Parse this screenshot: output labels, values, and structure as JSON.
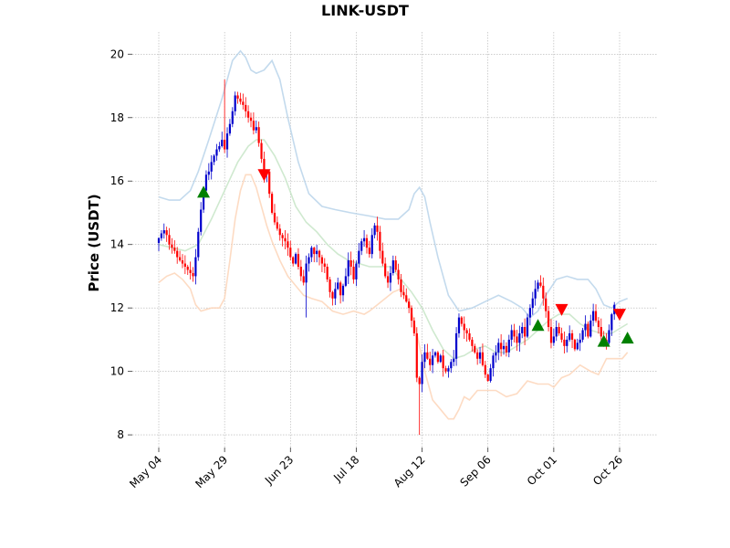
{
  "chart_data": {
    "type": "candlestick",
    "title": "LINK-USDT",
    "xlabel": "",
    "ylabel": "Price (USDT)",
    "ylim": [
      7.6,
      20.7
    ],
    "y_ticks": [
      8,
      10,
      12,
      14,
      16,
      18,
      20
    ],
    "x_start": "2023-05-04",
    "x_end": "2023-10-29",
    "x_ticks": [
      {
        "date": "2023-05-04",
        "label": "May 04"
      },
      {
        "date": "2023-05-29",
        "label": "May 29"
      },
      {
        "date": "2023-06-23",
        "label": "Jun 23"
      },
      {
        "date": "2023-07-18",
        "label": "Jul 18"
      },
      {
        "date": "2023-08-12",
        "label": "Aug 12"
      },
      {
        "date": "2023-09-06",
        "label": "Sep 06"
      },
      {
        "date": "2023-10-01",
        "label": "Oct 01"
      },
      {
        "date": "2023-10-26",
        "label": "Oct 26"
      }
    ],
    "grid": true,
    "colors": {
      "up": "#0000cc",
      "down": "#ff0000",
      "upper_band": "#b8d4ea",
      "middle_band": "#c7e5c7",
      "lower_band": "#fdd5b8",
      "buy_marker": "#008000",
      "sell_marker": "#ff0000"
    },
    "closes": [
      14.2,
      14.35,
      14.45,
      14.3,
      14.0,
      13.9,
      13.8,
      13.6,
      13.5,
      13.4,
      13.3,
      13.2,
      13.1,
      13.0,
      13.6,
      14.4,
      15.1,
      15.7,
      16.2,
      16.3,
      16.6,
      16.8,
      17.0,
      17.1,
      17.3,
      17.0,
      17.5,
      17.8,
      18.2,
      18.7,
      18.6,
      18.5,
      18.4,
      18.2,
      18.0,
      17.9,
      17.6,
      17.7,
      17.2,
      16.7,
      16.2,
      16.3,
      15.6,
      15.0,
      14.7,
      14.5,
      14.3,
      14.2,
      14.1,
      13.9,
      13.6,
      13.4,
      13.7,
      13.3,
      13.0,
      12.8,
      13.4,
      13.6,
      13.9,
      13.7,
      13.8,
      13.6,
      13.4,
      13.3,
      12.9,
      12.5,
      12.3,
      12.6,
      12.8,
      12.4,
      12.7,
      13.0,
      13.5,
      13.3,
      12.9,
      13.4,
      13.8,
      14.1,
      14.2,
      13.9,
      13.7,
      14.3,
      14.6,
      14.4,
      13.8,
      13.4,
      13.0,
      12.8,
      13.1,
      13.5,
      13.2,
      12.9,
      12.5,
      12.4,
      12.2,
      12.0,
      11.6,
      11.2,
      9.8,
      9.6,
      10.3,
      10.6,
      10.4,
      10.2,
      10.5,
      10.6,
      10.3,
      10.5,
      10.1,
      10.0,
      10.1,
      10.3,
      10.4,
      11.2,
      11.7,
      11.5,
      11.3,
      11.2,
      11.0,
      10.8,
      10.6,
      10.4,
      10.6,
      10.2,
      9.9,
      9.7,
      10.1,
      10.5,
      10.6,
      10.9,
      10.7,
      10.8,
      10.6,
      11.0,
      11.3,
      11.1,
      10.9,
      11.2,
      11.4,
      11.1,
      11.7,
      12.0,
      12.3,
      12.6,
      12.8,
      12.7,
      12.3,
      11.9,
      11.4,
      10.9,
      11.1,
      11.4,
      11.2,
      11.0,
      10.8,
      11.0,
      11.2,
      11.0,
      10.7,
      10.9,
      11.0,
      11.3,
      11.5,
      11.1,
      11.6,
      11.9,
      11.6,
      11.4,
      11.1,
      11.0,
      10.9,
      11.3,
      11.8,
      12.1
    ],
    "upper_band": [
      [
        0,
        15.5
      ],
      [
        4,
        15.4
      ],
      [
        8,
        15.4
      ],
      [
        12,
        15.7
      ],
      [
        15,
        16.3
      ],
      [
        19,
        17.3
      ],
      [
        24,
        18.6
      ],
      [
        28,
        19.8
      ],
      [
        31,
        20.1
      ],
      [
        33,
        19.9
      ],
      [
        35,
        19.5
      ],
      [
        37,
        19.4
      ],
      [
        40,
        19.5
      ],
      [
        43,
        19.8
      ],
      [
        46,
        19.2
      ],
      [
        49,
        18.0
      ],
      [
        53,
        16.6
      ],
      [
        57,
        15.6
      ],
      [
        62,
        15.2
      ],
      [
        67,
        15.1
      ],
      [
        73,
        15.0
      ],
      [
        80,
        14.9
      ],
      [
        86,
        14.8
      ],
      [
        91,
        14.8
      ],
      [
        95,
        15.1
      ],
      [
        97,
        15.6
      ],
      [
        99,
        15.8
      ],
      [
        101,
        15.5
      ],
      [
        103,
        14.7
      ],
      [
        106,
        13.6
      ],
      [
        110,
        12.4
      ],
      [
        114,
        11.9
      ],
      [
        119,
        12.0
      ],
      [
        124,
        12.2
      ],
      [
        129,
        12.4
      ],
      [
        134,
        12.2
      ],
      [
        138,
        12.0
      ],
      [
        141,
        11.7
      ],
      [
        144,
        11.9
      ],
      [
        147,
        12.4
      ],
      [
        151,
        12.9
      ],
      [
        155,
        13.0
      ],
      [
        159,
        12.9
      ],
      [
        163,
        12.9
      ],
      [
        166,
        12.6
      ],
      [
        169,
        12.1
      ],
      [
        172,
        12.0
      ],
      [
        175,
        12.2
      ],
      [
        178,
        12.3
      ]
    ],
    "middle_band": [
      [
        0,
        14.0
      ],
      [
        5,
        13.9
      ],
      [
        10,
        13.8
      ],
      [
        15,
        14.0
      ],
      [
        20,
        14.8
      ],
      [
        25,
        15.7
      ],
      [
        30,
        16.6
      ],
      [
        34,
        17.1
      ],
      [
        37,
        17.3
      ],
      [
        40,
        17.3
      ],
      [
        44,
        16.8
      ],
      [
        48,
        16.1
      ],
      [
        52,
        15.2
      ],
      [
        56,
        14.7
      ],
      [
        60,
        14.4
      ],
      [
        64,
        14.0
      ],
      [
        68,
        13.7
      ],
      [
        72,
        13.5
      ],
      [
        76,
        13.4
      ],
      [
        80,
        13.3
      ],
      [
        84,
        13.3
      ],
      [
        88,
        13.3
      ],
      [
        92,
        12.9
      ],
      [
        96,
        12.5
      ],
      [
        100,
        12.0
      ],
      [
        104,
        11.3
      ],
      [
        108,
        10.7
      ],
      [
        112,
        10.4
      ],
      [
        116,
        10.5
      ],
      [
        120,
        10.7
      ],
      [
        124,
        10.8
      ],
      [
        128,
        10.6
      ],
      [
        132,
        10.6
      ],
      [
        136,
        10.8
      ],
      [
        140,
        11.0
      ],
      [
        144,
        11.3
      ],
      [
        148,
        11.6
      ],
      [
        152,
        11.8
      ],
      [
        156,
        11.8
      ],
      [
        160,
        11.5
      ],
      [
        164,
        11.3
      ],
      [
        168,
        11.2
      ],
      [
        172,
        11.2
      ],
      [
        176,
        11.4
      ],
      [
        178,
        11.5
      ]
    ],
    "lower_band": [
      [
        0,
        12.8
      ],
      [
        3,
        13.0
      ],
      [
        6,
        13.1
      ],
      [
        9,
        12.9
      ],
      [
        12,
        12.6
      ],
      [
        14,
        12.1
      ],
      [
        16,
        11.9
      ],
      [
        20,
        12.0
      ],
      [
        23,
        12.0
      ],
      [
        25,
        12.3
      ],
      [
        27,
        13.5
      ],
      [
        29,
        14.8
      ],
      [
        31,
        15.7
      ],
      [
        33,
        16.2
      ],
      [
        35,
        16.2
      ],
      [
        37,
        15.8
      ],
      [
        39,
        15.2
      ],
      [
        41,
        14.6
      ],
      [
        43,
        14.1
      ],
      [
        46,
        13.5
      ],
      [
        49,
        13.0
      ],
      [
        52,
        12.7
      ],
      [
        55,
        12.4
      ],
      [
        58,
        12.3
      ],
      [
        62,
        12.2
      ],
      [
        66,
        11.9
      ],
      [
        70,
        11.8
      ],
      [
        74,
        11.9
      ],
      [
        78,
        11.8
      ],
      [
        80,
        11.9
      ],
      [
        83,
        12.1
      ],
      [
        86,
        12.3
      ],
      [
        89,
        12.5
      ],
      [
        92,
        12.6
      ],
      [
        95,
        12.2
      ],
      [
        98,
        11.2
      ],
      [
        101,
        10.0
      ],
      [
        104,
        9.1
      ],
      [
        107,
        8.8
      ],
      [
        110,
        8.5
      ],
      [
        112,
        8.5
      ],
      [
        114,
        8.8
      ],
      [
        116,
        9.2
      ],
      [
        118,
        9.1
      ],
      [
        121,
        9.4
      ],
      [
        124,
        9.4
      ],
      [
        128,
        9.4
      ],
      [
        132,
        9.2
      ],
      [
        136,
        9.3
      ],
      [
        140,
        9.7
      ],
      [
        144,
        9.6
      ],
      [
        148,
        9.6
      ],
      [
        150,
        9.5
      ],
      [
        153,
        9.8
      ],
      [
        156,
        9.9
      ],
      [
        160,
        10.2
      ],
      [
        164,
        10.0
      ],
      [
        167,
        9.9
      ],
      [
        170,
        10.4
      ],
      [
        173,
        10.4
      ],
      [
        176,
        10.4
      ],
      [
        178,
        10.6
      ]
    ],
    "buy_markers": [
      [
        17,
        15.65
      ],
      [
        144,
        11.45
      ],
      [
        169,
        10.95
      ],
      [
        178,
        11.05
      ]
    ],
    "sell_markers": [
      [
        40,
        16.2
      ],
      [
        153,
        11.95
      ],
      [
        175,
        11.8
      ]
    ]
  }
}
